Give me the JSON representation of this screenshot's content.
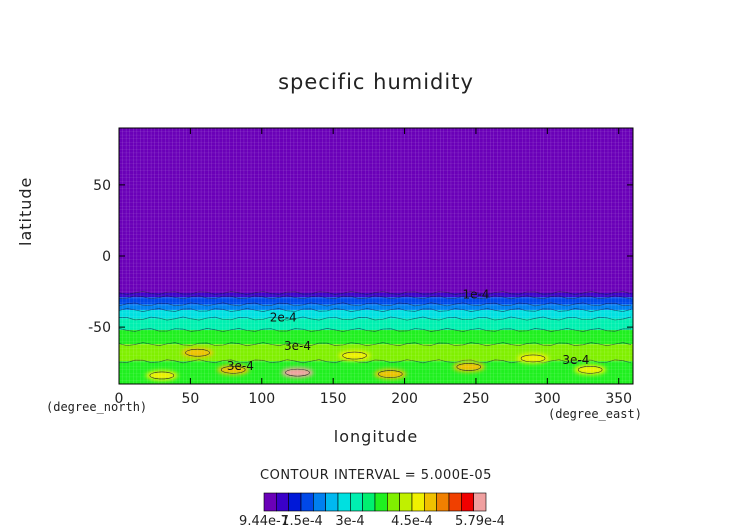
{
  "chart_data": {
    "type": "heatmap",
    "title": "specific humidity",
    "xlabel": "longitude",
    "ylabel": "latitude",
    "x_unit": "(degree_east)",
    "y_unit": "(degree_north)",
    "xlim": [
      0,
      360
    ],
    "ylim": [
      -90,
      90
    ],
    "x_ticks": [
      "0",
      "50",
      "100",
      "150",
      "200",
      "250",
      "300",
      "350"
    ],
    "y_ticks": [
      "50",
      "0",
      "-50"
    ],
    "contour_interval_text": "CONTOUR INTERVAL = 5.000E-05",
    "contour_labels": [
      "1e-4",
      "2e-4",
      "3e-4",
      "3e-4",
      "3e-4"
    ],
    "colorbar_labels": [
      "9.44e-7",
      "1.5e-4",
      "3e-4",
      "4.5e-4",
      "5.79e-4"
    ],
    "colorbar_colors": [
      "#6a00b8",
      "#3a00c8",
      "#0018d8",
      "#0048e8",
      "#0080f0",
      "#00b8f0",
      "#00e0e0",
      "#00f0b0",
      "#00f070",
      "#20f020",
      "#80f000",
      "#c0f000",
      "#f0f000",
      "#f0c000",
      "#f08000",
      "#f04000",
      "#f00000",
      "#f0a0a0"
    ],
    "bands": [
      {
        "lat_top": 90,
        "lat_bottom": -26,
        "value": 9.44e-07
      },
      {
        "lat_top": -26,
        "lat_bottom": -29,
        "value": 5e-05
      },
      {
        "lat_top": -29,
        "lat_bottom": -34,
        "value": 0.0001
      },
      {
        "lat_top": -34,
        "lat_bottom": -38,
        "value": 0.00015
      },
      {
        "lat_top": -38,
        "lat_bottom": -44,
        "value": 0.0002
      },
      {
        "lat_top": -44,
        "lat_bottom": -52,
        "value": 0.00025
      },
      {
        "lat_top": -52,
        "lat_bottom": -62,
        "value": 0.0003
      },
      {
        "lat_top": -62,
        "lat_bottom": -74,
        "value": 0.00035
      },
      {
        "lat_top": -74,
        "lat_bottom": -90,
        "value": 0.00032
      }
    ],
    "blobs": [
      {
        "lon": 125,
        "lat": -82,
        "value": 0.000579
      },
      {
        "lon": 80,
        "lat": -80,
        "value": 0.00045
      },
      {
        "lon": 190,
        "lat": -83,
        "value": 0.00045
      },
      {
        "lon": 330,
        "lat": -80,
        "value": 0.0004
      },
      {
        "lon": 55,
        "lat": -68,
        "value": 0.00042
      },
      {
        "lon": 165,
        "lat": -70,
        "value": 0.0004
      },
      {
        "lon": 245,
        "lat": -78,
        "value": 0.00042
      },
      {
        "lon": 290,
        "lat": -72,
        "value": 0.0004
      },
      {
        "lon": 30,
        "lat": -84,
        "value": 0.0004
      }
    ]
  }
}
